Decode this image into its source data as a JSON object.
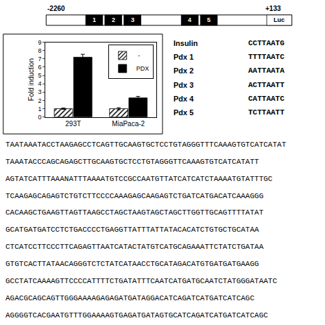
{
  "chart_data": [
    {
      "type": "diagram",
      "annotations": [
        "-2260",
        "+133",
        "Luc",
        "1",
        "2",
        "3",
        "4",
        "5"
      ]
    },
    {
      "type": "bar",
      "categories": [
        "293T",
        "MiaPaca-2"
      ],
      "series": [
        {
          "name": " -",
          "color": "#ffffff",
          "marker": "hatched",
          "values": [
            1.0,
            1.0
          ],
          "errors": [
            0.08,
            0.12
          ]
        },
        {
          "name": "PDX",
          "color": "#000000",
          "values": [
            7.2,
            2.3
          ],
          "errors": [
            0.35,
            0.18
          ]
        }
      ],
      "ylabel": "Fold induction",
      "ylim": [
        0,
        9
      ],
      "yticks": [
        0,
        1,
        2,
        3,
        4,
        5,
        6,
        7,
        8,
        9
      ],
      "grid": false,
      "legend": "upper right"
    },
    {
      "type": "table",
      "annotations": [
        [
          "Insulin",
          "CCTTAATG"
        ],
        [
          "Pdx 1",
          "TTTTAATC"
        ],
        [
          "Pdx 2",
          "AATTAATA"
        ],
        [
          "Pdx 3",
          "ACTTAATT"
        ],
        [
          "Pdx 4",
          "CATTAATC"
        ],
        [
          "Pdx 5",
          "TCTTAATT"
        ]
      ]
    },
    {
      "type": "text",
      "annotations": [
        "TAATAAATACCTAAGAGCCTCAGTTGCAAGTGCTCCTGTAGGGTTTCAAAGTGTCATCATAT",
        "TAAATACCCAGCAGAGCTTGCAAGTGCTCCTGTAGGGTTCAAAGTGTCATCATATT",
        "AGTATCATTTAAANATTTAAAATGTCCGCCAATGTTATCATCATCTAAAATGTATTTGC",
        "TCAAGAGCAGAGTCTGTCTTCCCCAAAGAGCAAGAGTCTGATCATGACATCAAAGGG",
        "CACAAGCTGAAGTTAGTTAAGCCTAGCTAAGTAGCTAGCTTGGTTGCAGTTTTATAT",
        "GCATGATGATCCTCTGACCCCTGAGGTTATTTATTATACACATCTGTGCTGCATAA",
        "CTCATCCTTCCCTTCAGAGTTAATCATACTATGTCATGCAGAAATTCTATCTGATAA",
        "GTGTCACTTATAACAGGGTCTCTATCATAACCTGCATAGACATGTGATGATGAAGG",
        "GCCTATCAAAAGTTCCCCATTTTCTGATATTTCAATCATGATGCAATCTATGGGATAATC",
        "AGACGCAGCAGTTGGGAAAAGAGAGATGATAGGACATCAGATCATGATCATCAGC",
        "AGGGGTCACGAATGTTTGGAAAAGTGAGATGATAGTGCATCAGATCATGATCATCAGC"
      ]
    }
  ]
}
